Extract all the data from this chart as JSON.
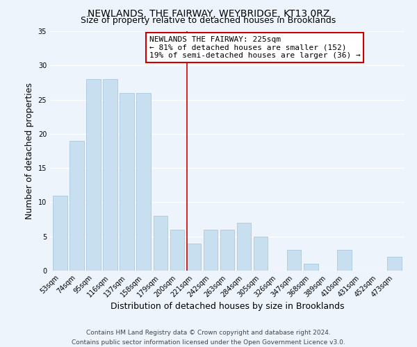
{
  "title": "NEWLANDS, THE FAIRWAY, WEYBRIDGE, KT13 0RZ",
  "subtitle": "Size of property relative to detached houses in Brooklands",
  "xlabel": "Distribution of detached houses by size in Brooklands",
  "ylabel": "Number of detached properties",
  "categories": [
    "53sqm",
    "74sqm",
    "95sqm",
    "116sqm",
    "137sqm",
    "158sqm",
    "179sqm",
    "200sqm",
    "221sqm",
    "242sqm",
    "263sqm",
    "284sqm",
    "305sqm",
    "326sqm",
    "347sqm",
    "368sqm",
    "389sqm",
    "410sqm",
    "431sqm",
    "452sqm",
    "473sqm"
  ],
  "values": [
    11,
    19,
    28,
    28,
    26,
    26,
    8,
    6,
    4,
    6,
    6,
    7,
    5,
    0,
    3,
    1,
    0,
    3,
    0,
    0,
    2
  ],
  "bar_color": "#c8dff0",
  "bar_edge_color": "#a8c8e0",
  "highlight_line_color": "#cc0000",
  "highlight_line_index": 8,
  "annotation_text_line1": "NEWLANDS THE FAIRWAY: 225sqm",
  "annotation_text_line2": "← 81% of detached houses are smaller (152)",
  "annotation_text_line3": "19% of semi-detached houses are larger (36) →",
  "ylim": [
    0,
    35
  ],
  "yticks": [
    0,
    5,
    10,
    15,
    20,
    25,
    30,
    35
  ],
  "footer": "Contains HM Land Registry data © Crown copyright and database right 2024.\nContains public sector information licensed under the Open Government Licence v3.0.",
  "background_color": "#eef4fc",
  "grid_color": "#ffffff",
  "title_fontsize": 10,
  "subtitle_fontsize": 9,
  "axis_label_fontsize": 9,
  "tick_fontsize": 7,
  "annotation_fontsize": 8,
  "footer_fontsize": 6.5
}
